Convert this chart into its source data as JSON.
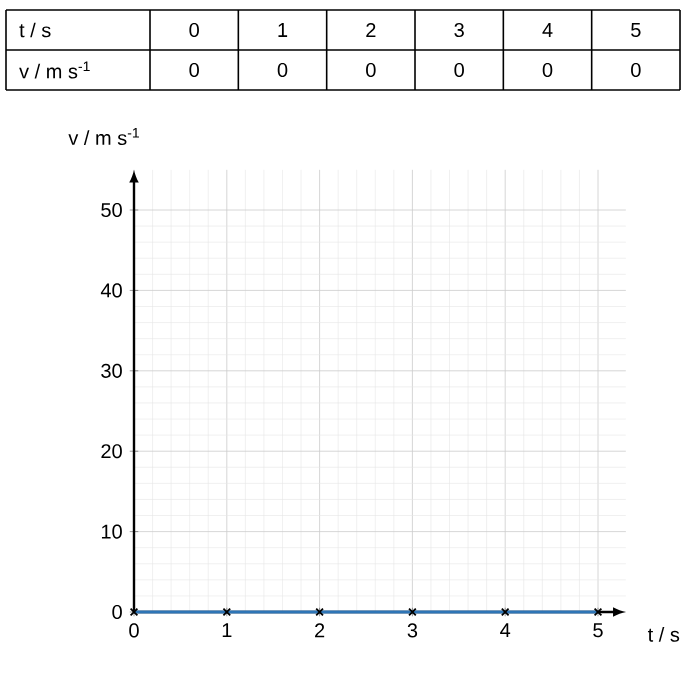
{
  "chart_data": {
    "type": "line",
    "xlabel": "t / s",
    "ylabel": "v / m s$^{-1}$",
    "annotations": [
      "t / s",
      "0",
      "1",
      "2",
      "3",
      "4",
      "5",
      "v / m s$^{-1}$",
      "0",
      "0",
      "0",
      "0",
      "0",
      "0"
    ],
    "x": [
      0,
      1,
      2,
      3,
      4,
      5
    ],
    "series": [
      {
        "color": "#2e75b6",
        "values": [
          0,
          0,
          0,
          0,
          0,
          0
        ]
      }
    ],
    "xlim": [
      0,
      5.3
    ],
    "ylim": [
      0,
      55
    ],
    "xticks": [
      0,
      1,
      2,
      3,
      4,
      5
    ],
    "yticks": [
      0,
      10,
      20,
      30,
      40,
      50
    ],
    "grid": true,
    "marker": "cross",
    "line_style": "solid"
  }
}
